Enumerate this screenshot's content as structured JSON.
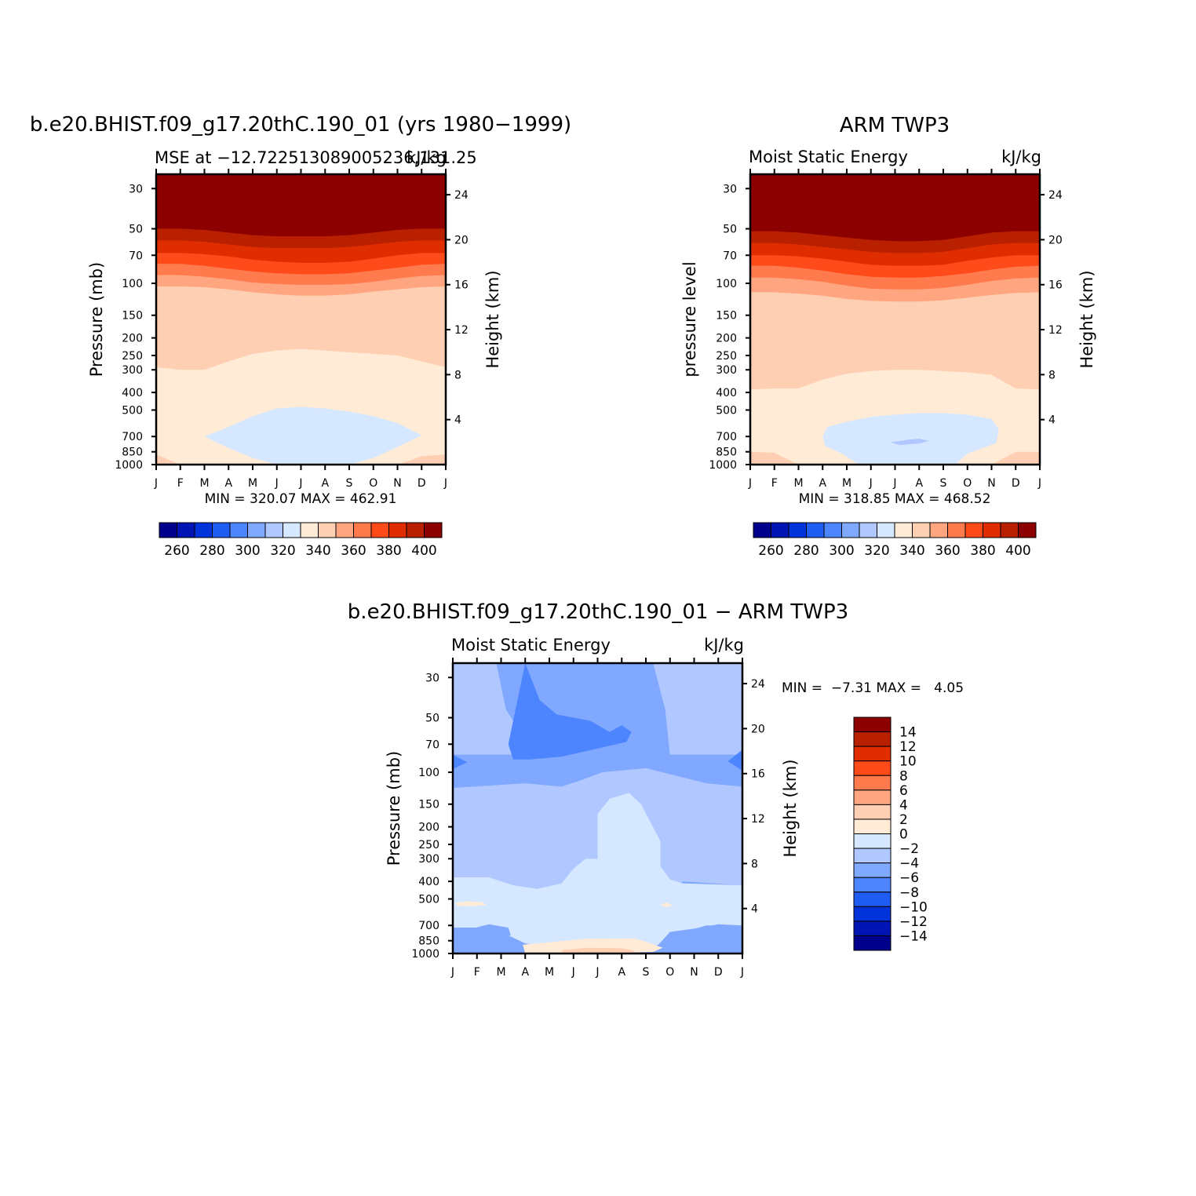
{
  "palette": {
    "full": [
      "#00008c",
      "#0015b3",
      "#0033d9",
      "#1f5cf2",
      "#4d85ff",
      "#80a8ff",
      "#b0c8ff",
      "#d6e8ff",
      "#ffebd6",
      "#ffcfb3",
      "#ffa680",
      "#ff7a4d",
      "#ff4a1a",
      "#e02d00",
      "#b82000",
      "#8c0000"
    ],
    "panel_levels": [
      "#d6e8ff",
      "#ffebd6",
      "#ffcfb3",
      "#ffa680",
      "#ff7a4d",
      "#ff4a1a",
      "#e02d00",
      "#b82000",
      "#8c0000"
    ],
    "diff_levels": [
      "#4d85ff",
      "#80a8ff",
      "#b0c8ff",
      "#d6e8ff",
      "#ffebd6",
      "#ffcfb3"
    ]
  },
  "chart_data": [
    {
      "type": "heatmap",
      "title": "b.e20.BHIST.f09_g17.20thC.190_01 (yrs 1980-1999)",
      "left_string": "MSE at -12.722513089005236,131.25",
      "right_string": "kJ/kg",
      "ylabel": "Pressure (mb)",
      "y2label": "Height (km)",
      "months": [
        "J",
        "F",
        "M",
        "A",
        "M",
        "J",
        "J",
        "A",
        "S",
        "O",
        "N",
        "D",
        "J"
      ],
      "pressure_ticks": [
        30,
        50,
        70,
        100,
        150,
        200,
        250,
        300,
        400,
        500,
        700,
        850,
        1000
      ],
      "height_ticks": [
        4,
        8,
        12,
        16,
        20,
        24
      ],
      "yscale": "log",
      "ylim": [
        25,
        1000
      ],
      "stats": "MIN = 320.07 MAX = 462.91",
      "min": 320.07,
      "max": 462.91,
      "colorbar_labels": [
        "260",
        "280",
        "300",
        "320",
        "340",
        "360",
        "380",
        "400"
      ],
      "boundaries_p": [
        [
          58,
          58,
          59,
          61,
          63,
          64,
          64,
          64,
          63,
          61,
          59,
          58,
          58
        ],
        [
          68,
          68,
          69,
          71,
          74,
          76,
          77,
          77,
          76,
          73,
          70,
          68,
          68
        ],
        [
          78,
          78,
          80,
          83,
          86,
          88,
          89,
          89,
          88,
          85,
          82,
          79,
          78
        ],
        [
          90,
          90,
          92,
          95,
          99,
          101,
          102,
          102,
          101,
          98,
          94,
          91,
          90
        ],
        [
          104,
          104,
          105,
          108,
          112,
          115,
          117,
          117,
          115,
          111,
          108,
          105,
          104
        ],
        [
          290,
          300,
          300,
          270,
          245,
          235,
          230,
          235,
          240,
          245,
          250,
          270,
          290
        ],
        [
          880,
          1000,
          1000,
          1000,
          1000,
          1000,
          1000,
          1000,
          1000,
          1000,
          1000,
          900,
          880
        ]
      ],
      "blob_p": [
        {
          "month": 2.0,
          "p": 700
        },
        {
          "month": 3.0,
          "p": 620
        },
        {
          "month": 4.0,
          "p": 540
        },
        {
          "month": 5.0,
          "p": 490
        },
        {
          "month": 6.0,
          "p": 480
        },
        {
          "month": 7.0,
          "p": 490
        },
        {
          "month": 8.0,
          "p": 510
        },
        {
          "month": 9.0,
          "p": 540
        },
        {
          "month": 10.0,
          "p": 590
        },
        {
          "month": 11.0,
          "p": 690
        },
        {
          "month": 10.0,
          "p": 800
        },
        {
          "month": 9.0,
          "p": 920
        },
        {
          "month": 8.0,
          "p": 1000
        },
        {
          "month": 5.0,
          "p": 1000
        },
        {
          "month": 4.0,
          "p": 920
        },
        {
          "month": 3.0,
          "p": 810
        }
      ]
    },
    {
      "type": "heatmap",
      "title": "ARM TWP3",
      "left_string": "Moist Static Energy",
      "right_string": "kJ/kg",
      "ylabel": "pressure level",
      "y2label": "Height (km)",
      "months": [
        "J",
        "F",
        "M",
        "A",
        "M",
        "J",
        "J",
        "A",
        "S",
        "O",
        "N",
        "D",
        "J"
      ],
      "pressure_ticks": [
        30,
        50,
        70,
        100,
        150,
        200,
        250,
        300,
        400,
        500,
        700,
        850,
        1000
      ],
      "height_ticks": [
        4,
        8,
        12,
        16,
        20,
        24
      ],
      "yscale": "log",
      "ylim": [
        25,
        1000
      ],
      "stats": "MIN = 318.85 MAX = 468.52",
      "min": 318.85,
      "max": 468.52,
      "colorbar_labels": [
        "260",
        "280",
        "300",
        "320",
        "340",
        "360",
        "380",
        "400"
      ],
      "boundaries_p": [
        [
          60,
          60,
          61,
          63,
          65,
          67,
          68,
          68,
          67,
          64,
          61,
          60,
          60
        ],
        [
          70,
          70,
          71,
          73,
          76,
          79,
          80,
          80,
          79,
          75,
          72,
          70,
          70
        ],
        [
          80,
          80,
          82,
          85,
          89,
          92,
          93,
          93,
          91,
          88,
          84,
          81,
          80
        ],
        [
          93,
          93,
          95,
          98,
          103,
          107,
          108,
          108,
          106,
          102,
          97,
          94,
          93
        ],
        [
          112,
          112,
          114,
          117,
          122,
          125,
          126,
          126,
          124,
          120,
          116,
          113,
          112
        ],
        [
          385,
          380,
          380,
          340,
          315,
          305,
          300,
          300,
          305,
          310,
          320,
          380,
          385
        ],
        [
          850,
          860,
          1000,
          1000,
          1000,
          1000,
          1000,
          1000,
          1000,
          1000,
          1000,
          850,
          850
        ]
      ],
      "blob_p": [
        {
          "month": 3.0,
          "p": 700
        },
        {
          "month": 3.2,
          "p": 620
        },
        {
          "month": 4.0,
          "p": 580
        },
        {
          "month": 5.0,
          "p": 545
        },
        {
          "month": 6.0,
          "p": 530
        },
        {
          "month": 7.0,
          "p": 520
        },
        {
          "month": 8.0,
          "p": 520
        },
        {
          "month": 9.0,
          "p": 530
        },
        {
          "month": 10.0,
          "p": 560
        },
        {
          "month": 10.3,
          "p": 640
        },
        {
          "month": 10.2,
          "p": 760
        },
        {
          "month": 9.0,
          "p": 870
        },
        {
          "month": 8.5,
          "p": 1000
        },
        {
          "month": 4.5,
          "p": 1000
        },
        {
          "month": 3.8,
          "p": 870
        },
        {
          "month": 3.1,
          "p": 790
        }
      ],
      "blob2_p": [
        {
          "month": 5.8,
          "p": 755
        },
        {
          "month": 6.5,
          "p": 730
        },
        {
          "month": 7.0,
          "p": 720
        },
        {
          "month": 7.4,
          "p": 740
        },
        {
          "month": 7.0,
          "p": 765
        },
        {
          "month": 6.2,
          "p": 780
        }
      ]
    },
    {
      "type": "heatmap",
      "title": "b.e20.BHIST.f09_g17.20thC.190_01 - ARM TWP3",
      "left_string": "Moist Static Energy",
      "right_string": "kJ/kg",
      "ylabel": "Pressure (mb)",
      "y2label": "Height (km)",
      "months": [
        "J",
        "F",
        "M",
        "A",
        "M",
        "J",
        "J",
        "A",
        "S",
        "O",
        "N",
        "D",
        "J"
      ],
      "pressure_ticks": [
        30,
        50,
        70,
        100,
        150,
        200,
        250,
        300,
        400,
        500,
        700,
        850,
        1000
      ],
      "height_ticks": [
        4,
        8,
        12,
        16,
        20,
        24
      ],
      "yscale": "log",
      "ylim": [
        25,
        1000
      ],
      "stats": "MIN =  -7.31 MAX =   4.05",
      "min": -7.31,
      "max": 4.05,
      "colorbar_labels": [
        "14",
        "12",
        "10",
        "8",
        "6",
        "4",
        "2",
        "0",
        "-2",
        "-4",
        "-6",
        "-8",
        "-10",
        "-12",
        "-14"
      ],
      "regions": [
        {
          "level": 1,
          "pts": [
            [
              0,
              25
            ],
            [
              12,
              25
            ],
            [
              12,
              1000
            ],
            [
              0,
              1000
            ]
          ]
        },
        {
          "level": 2,
          "pts": [
            [
              0,
              25
            ],
            [
              1.8,
              25
            ],
            [
              2.2,
              45
            ],
            [
              2.8,
              60
            ],
            [
              2.8,
              80
            ],
            [
              0,
              80
            ]
          ]
        },
        {
          "level": 2,
          "pts": [
            [
              8.3,
              25
            ],
            [
              12,
              25
            ],
            [
              12,
              80
            ],
            [
              9,
              80
            ],
            [
              8.8,
              45
            ]
          ]
        },
        {
          "level": 0,
          "pts": [
            [
              3.0,
              25
            ],
            [
              3.6,
              40
            ],
            [
              4.3,
              48
            ],
            [
              5.7,
              52
            ],
            [
              6.5,
              60
            ],
            [
              7.0,
              55
            ],
            [
              7.4,
              60
            ],
            [
              7.2,
              68
            ],
            [
              5.8,
              75
            ],
            [
              4.5,
              82
            ],
            [
              3.2,
              85
            ],
            [
              2.5,
              85
            ],
            [
              2.3,
              70
            ]
          ]
        },
        {
          "level": 0,
          "pts": [
            [
              0,
              80
            ],
            [
              0.6,
              88
            ],
            [
              0,
              96
            ]
          ]
        },
        {
          "level": 0,
          "pts": [
            [
              12,
              75
            ],
            [
              11.4,
              87
            ],
            [
              12,
              98
            ]
          ]
        },
        {
          "level": 2,
          "pts": [
            [
              0,
              122
            ],
            [
              3.0,
              115
            ],
            [
              4.5,
              120
            ],
            [
              5.2,
              112
            ],
            [
              6.2,
              100
            ],
            [
              8.0,
              95
            ],
            [
              10.5,
              115
            ],
            [
              12,
              120
            ],
            [
              12,
              420
            ],
            [
              9.5,
              400
            ],
            [
              9.5,
              410
            ],
            [
              8.5,
              430
            ],
            [
              7.5,
              430
            ],
            [
              6.5,
              360
            ],
            [
              6.0,
              300
            ],
            [
              5.5,
              300
            ],
            [
              5.0,
              340
            ],
            [
              4.5,
              410
            ],
            [
              3.5,
              440
            ],
            [
              2.5,
              420
            ],
            [
              1.5,
              380
            ],
            [
              0,
              380
            ]
          ]
        },
        {
          "level": 3,
          "pts": [
            [
              0,
              380
            ],
            [
              1.5,
              380
            ],
            [
              2.5,
              420
            ],
            [
              3.5,
              440
            ],
            [
              4.5,
              410
            ],
            [
              5.0,
              340
            ],
            [
              5.5,
              300
            ],
            [
              6.0,
              300
            ],
            [
              6.0,
              170
            ],
            [
              6.5,
              140
            ],
            [
              7.3,
              130
            ],
            [
              7.8,
              150
            ],
            [
              8.6,
              240
            ],
            [
              8.6,
              330
            ],
            [
              9.0,
              390
            ],
            [
              9.5,
              410
            ],
            [
              12,
              420
            ],
            [
              12,
              700
            ],
            [
              11.0,
              690
            ],
            [
              10.0,
              730
            ],
            [
              9.0,
              760
            ],
            [
              8.5,
              900
            ],
            [
              4.0,
              920
            ],
            [
              3.0,
              880
            ],
            [
              2.0,
              760
            ],
            [
              1.0,
              720
            ],
            [
              0,
              720
            ]
          ]
        },
        {
          "level": 4,
          "pts": [
            [
              0.1,
              525
            ],
            [
              0.6,
              515
            ],
            [
              1.2,
              520
            ],
            [
              1.4,
              540
            ],
            [
              0.8,
              550
            ],
            [
              0.2,
              545
            ]
          ]
        },
        {
          "level": 4,
          "pts": [
            [
              8.6,
              535
            ],
            [
              8.9,
              525
            ],
            [
              9.1,
              545
            ],
            [
              8.8,
              555
            ]
          ]
        },
        {
          "level": 4,
          "pts": [
            [
              2.9,
              895
            ],
            [
              5.5,
              830
            ],
            [
              7.5,
              825
            ],
            [
              8.0,
              860
            ],
            [
              8.7,
              930
            ],
            [
              8.3,
              980
            ],
            [
              5.5,
              1000
            ],
            [
              3.0,
              1000
            ]
          ]
        },
        {
          "level": 5,
          "pts": [
            [
              4.5,
              960
            ],
            [
              5.5,
              930
            ],
            [
              7.0,
              935
            ],
            [
              7.6,
              970
            ],
            [
              7.2,
              1000
            ],
            [
              4.6,
              1000
            ]
          ]
        },
        {
          "level": 1,
          "pts": [
            [
              0.6,
              740
            ],
            [
              1.5,
              690
            ],
            [
              2.3,
              720
            ],
            [
              2.4,
              790
            ],
            [
              1.8,
              860
            ],
            [
              0.9,
              870
            ],
            [
              0.6,
              820
            ]
          ]
        },
        {
          "level": 1,
          "pts": [
            [
              9.6,
              760
            ],
            [
              10.5,
              700
            ],
            [
              11.5,
              700
            ],
            [
              11.8,
              760
            ],
            [
              11.0,
              790
            ],
            [
              10.0,
              810
            ]
          ]
        },
        {
          "level": 1,
          "pts": [
            [
              8.8,
              990
            ],
            [
              9.8,
              970
            ],
            [
              10.8,
              985
            ],
            [
              10.2,
              1000
            ],
            [
              9.0,
              1000
            ]
          ]
        }
      ]
    }
  ]
}
